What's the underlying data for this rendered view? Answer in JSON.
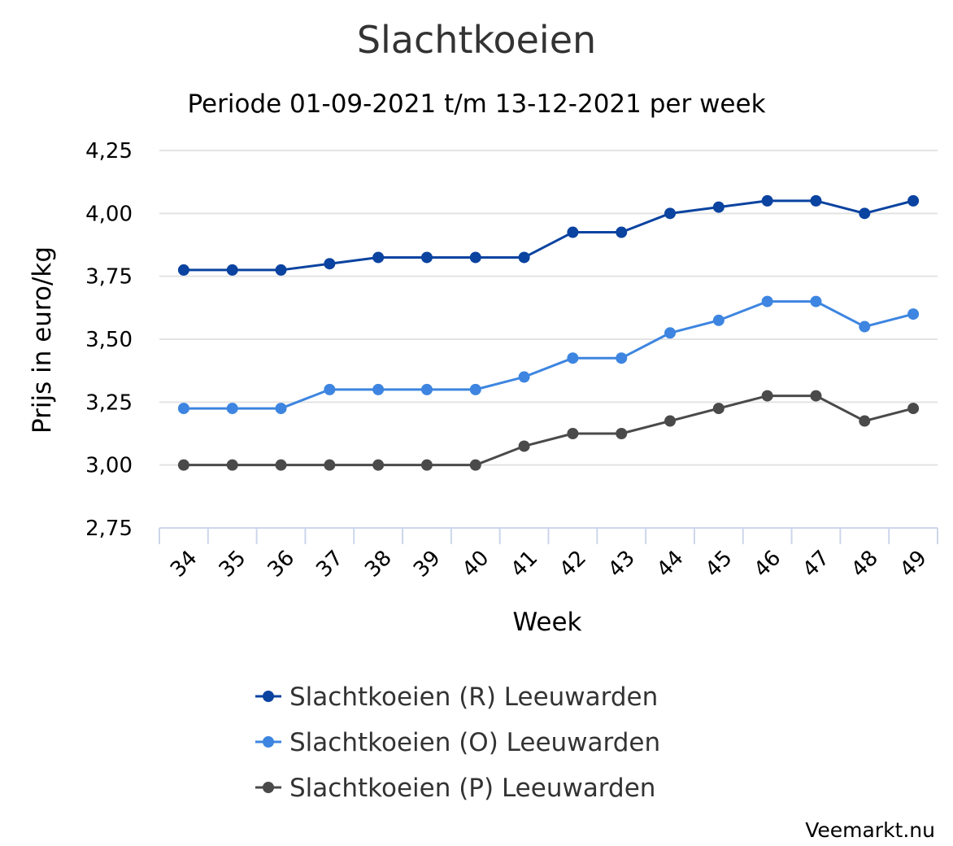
{
  "chart_data": {
    "type": "line",
    "title": "Slachtkoeien",
    "subtitle": "Periode 01-09-2021 t/m 13-12-2021 per week",
    "xlabel": "Week",
    "ylabel": "Prijs in euro/kg",
    "categories": [
      "34",
      "35",
      "36",
      "37",
      "38",
      "39",
      "40",
      "41",
      "42",
      "43",
      "44",
      "45",
      "46",
      "47",
      "48",
      "49"
    ],
    "ylim": [
      2.75,
      4.25
    ],
    "yticks": [
      "2,75",
      "3,00",
      "3,25",
      "3,50",
      "3,75",
      "4,00",
      "4,25"
    ],
    "ytick_values": [
      2.75,
      3.0,
      3.25,
      3.5,
      3.75,
      4.0,
      4.25
    ],
    "grid": true,
    "legend_position": "bottom",
    "series": [
      {
        "name": "Slachtkoeien (R) Leeuwarden",
        "color": "#0a43a0",
        "values": [
          3.775,
          3.775,
          3.775,
          3.8,
          3.825,
          3.825,
          3.825,
          3.825,
          3.925,
          3.925,
          4.0,
          4.025,
          4.05,
          4.05,
          4.0,
          4.05
        ]
      },
      {
        "name": "Slachtkoeien (O) Leeuwarden",
        "color": "#3d85e0",
        "values": [
          3.225,
          3.225,
          3.225,
          3.3,
          3.3,
          3.3,
          3.3,
          3.35,
          3.425,
          3.425,
          3.525,
          3.575,
          3.65,
          3.65,
          3.55,
          3.6
        ]
      },
      {
        "name": "Slachtkoeien (P) Leeuwarden",
        "color": "#4a4a4a",
        "values": [
          3.0,
          3.0,
          3.0,
          3.0,
          3.0,
          3.0,
          3.0,
          3.075,
          3.125,
          3.125,
          3.175,
          3.225,
          3.275,
          3.275,
          3.175,
          3.225
        ]
      }
    ]
  },
  "credit": "Veemarkt.nu",
  "colors": {
    "grid": "#e3e3e3",
    "axis": "#ccd6eb"
  }
}
